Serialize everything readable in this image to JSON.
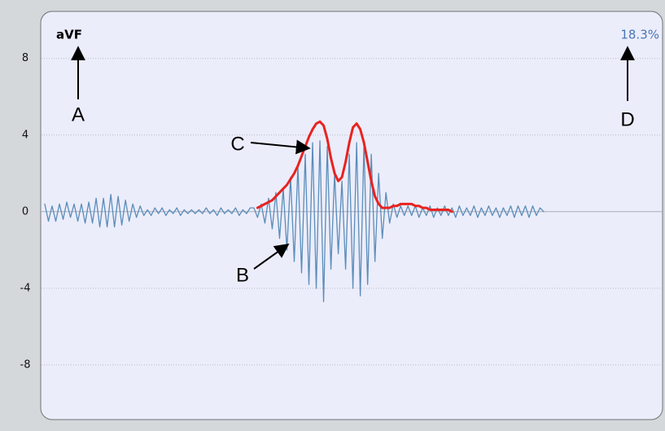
{
  "chart_data": {
    "type": "line",
    "title": "aVF",
    "subtitle": "18.3%",
    "ylim": [
      -10.6,
      10.2
    ],
    "yticks": [
      8,
      4,
      0,
      -4,
      -8
    ],
    "grid": true,
    "annotations": [
      "A",
      "B",
      "C",
      "D"
    ],
    "series": [
      {
        "color": "#5b8db8",
        "values": [
          0.4,
          -0.5,
          0.3,
          -0.5,
          0.4,
          -0.4,
          0.5,
          -0.3,
          0.4,
          -0.5,
          0.4,
          -0.6,
          0.5,
          -0.6,
          0.7,
          -0.8,
          0.7,
          -0.8,
          0.9,
          -0.8,
          0.8,
          -0.7,
          0.6,
          -0.5,
          0.4,
          -0.3,
          0.3,
          -0.2,
          0.1,
          -0.2,
          0.2,
          -0.1,
          0.2,
          -0.2,
          0.1,
          -0.1,
          0.2,
          -0.2,
          0.1,
          -0.1,
          0.1,
          -0.1,
          0.1,
          -0.1,
          0.2,
          -0.1,
          0.1,
          -0.2,
          0.2,
          -0.1,
          0.1,
          -0.1,
          0.2,
          -0.2,
          0.1,
          -0.1,
          0.2,
          0.2,
          -0.3,
          0.4,
          -0.6,
          0.7,
          -0.9,
          1.0,
          -1.4,
          1.2,
          -2.0,
          1.8,
          -2.6,
          2.4,
          -3.2,
          3.0,
          -3.8,
          3.6,
          -4.0,
          3.7,
          -4.7,
          3.4,
          -3.0,
          2.0,
          -2.2,
          1.6,
          -3.0,
          3.0,
          -4.0,
          3.6,
          -4.4,
          3.5,
          -3.8,
          3.0,
          -2.6,
          2.0,
          -1.4,
          1.0,
          -0.6,
          0.4,
          -0.3,
          0.3,
          -0.2,
          0.3,
          -0.2,
          0.3,
          -0.3,
          0.2,
          -0.2,
          0.3,
          -0.3,
          0.2,
          -0.2,
          0.3,
          -0.2,
          0.2,
          -0.3,
          0.3,
          -0.2,
          0.2,
          -0.2,
          0.3,
          -0.3,
          0.2,
          -0.2,
          0.3,
          -0.2,
          0.2,
          -0.3,
          0.2,
          -0.2,
          0.3,
          -0.3,
          0.3,
          -0.2,
          0.3,
          -0.3,
          0.3,
          -0.2,
          0.2,
          0
        ]
      },
      {
        "color": "#e8231f",
        "values": [
          null,
          null,
          null,
          null,
          null,
          null,
          null,
          null,
          null,
          null,
          null,
          null,
          null,
          null,
          null,
          null,
          null,
          null,
          null,
          null,
          null,
          null,
          null,
          null,
          null,
          null,
          null,
          null,
          null,
          null,
          null,
          null,
          null,
          null,
          null,
          null,
          null,
          null,
          null,
          null,
          null,
          null,
          null,
          null,
          null,
          null,
          null,
          null,
          null,
          null,
          null,
          null,
          null,
          null,
          null,
          null,
          null,
          null,
          0.2,
          0.3,
          0.4,
          0.5,
          0.6,
          0.8,
          1.0,
          1.2,
          1.4,
          1.7,
          2.0,
          2.4,
          2.9,
          3.4,
          3.9,
          4.3,
          4.6,
          4.7,
          4.5,
          3.8,
          2.8,
          2.0,
          1.6,
          1.8,
          2.6,
          3.6,
          4.4,
          4.6,
          4.3,
          3.6,
          2.6,
          1.6,
          0.8,
          0.4,
          0.2,
          0.2,
          0.2,
          0.3,
          0.3,
          0.4,
          0.4,
          0.4,
          0.4,
          0.3,
          0.3,
          0.2,
          0.2,
          0.1,
          0.1,
          0.1,
          0.1,
          0.1,
          0.1,
          0.0,
          null,
          null,
          null,
          null,
          null,
          null,
          null,
          null,
          null,
          null,
          null,
          null,
          null,
          null,
          null,
          null,
          null,
          null,
          null,
          null,
          null,
          null,
          null,
          null,
          null
        ]
      }
    ]
  }
}
